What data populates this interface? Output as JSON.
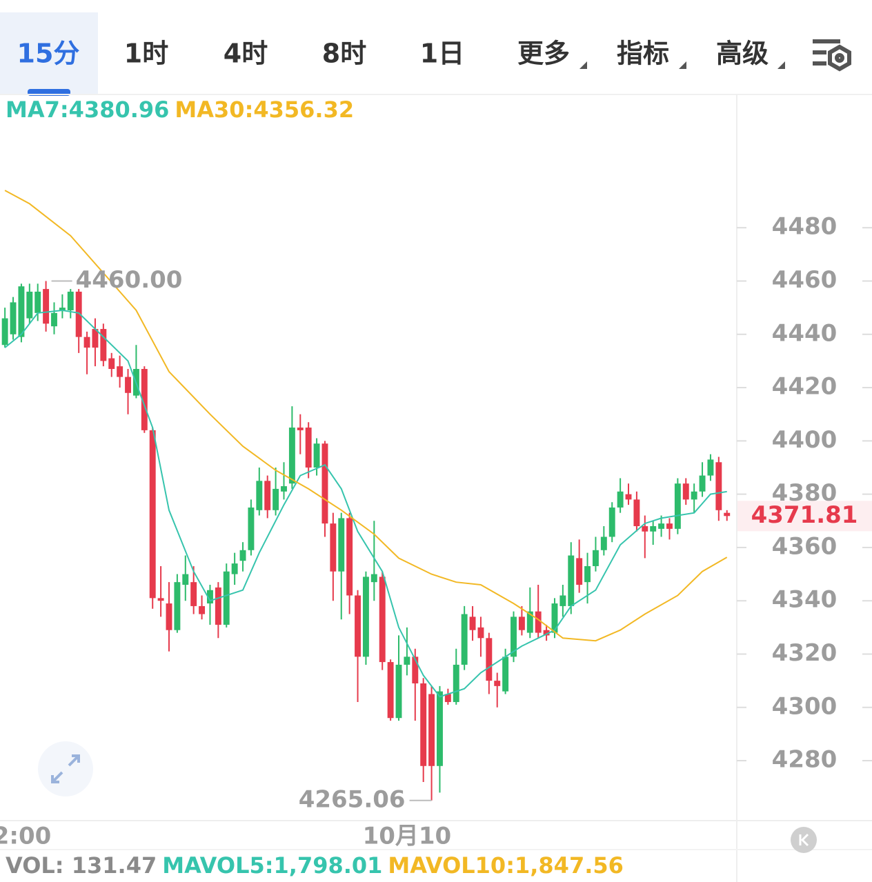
{
  "tabs": [
    "15分",
    "1时",
    "4时",
    "8时",
    "1日",
    "更多",
    "指标",
    "高级"
  ],
  "chart_data": {
    "type": "candlestick",
    "up_color": "#2dbb6b",
    "down_color": "#e63a4c",
    "xlim": [
      -0.6,
      89.2
    ],
    "ylim": [
      4257.5,
      4530
    ],
    "yticks": [
      4280,
      4300,
      4320,
      4340,
      4360,
      4380,
      4400,
      4420,
      4440,
      4460,
      4480
    ],
    "xticks": [
      {
        "value": 2,
        "label": "2:00"
      },
      {
        "value": 49,
        "label": "10月10"
      }
    ],
    "open": [
      4436,
      4440,
      4439,
      4446,
      4448,
      4457,
      4443,
      4449,
      4449,
      4456,
      4439,
      4442,
      4442,
      4431,
      4428,
      4424,
      4417,
      4427,
      4404,
      4341,
      4339,
      4329,
      4346,
      4347,
      4338,
      4339,
      4345,
      4331,
      4350,
      4355,
      4359,
      4374,
      4385,
      4374,
      4381,
      4384,
      4405,
      4405,
      4390,
      4399,
      4369,
      4351,
      4371,
      4342,
      4319,
      4347,
      4349,
      4317,
      4296,
      4316,
      4319,
      4309,
      4305,
      4278,
      4305,
      4302,
      4316,
      4334,
      4330,
      4326,
      4310,
      4306,
      4319,
      4334,
      4328,
      4336,
      4329,
      4328,
      4338,
      4338,
      4356,
      4347,
      4353,
      4359,
      4364,
      4375,
      4380,
      4378,
      4368,
      4366,
      4367,
      4369,
      4367,
      4384,
      4378,
      4381,
      4387,
      4392,
      4373
    ],
    "high": [
      4450,
      4454,
      4459,
      4459,
      4459,
      4460,
      4452,
      4455,
      4457,
      4457,
      4441,
      4446,
      4444,
      4433,
      4432,
      4427,
      4436,
      4428,
      4405,
      4353,
      4347,
      4350,
      4357,
      4353,
      4342,
      4346,
      4347,
      4354,
      4358,
      4362,
      4378,
      4390,
      4387,
      4390,
      4392,
      4413,
      4410,
      4407,
      4401,
      4400,
      4373,
      4373,
      4373,
      4344,
      4351,
      4370,
      4351,
      4318,
      4327,
      4330,
      4322,
      4311,
      4308,
      4308,
      4307,
      4322,
      4338,
      4338,
      4334,
      4328,
      4313,
      4322,
      4336,
      4338,
      4345,
      4346,
      4331,
      4341,
      4346,
      4362,
      4363,
      4358,
      4364,
      4368,
      4377,
      4386,
      4384,
      4381,
      4372,
      4370,
      4372,
      4371,
      4386,
      4386,
      4384,
      4392,
      4395,
      4394,
      4374
    ],
    "low": [
      4435,
      4438,
      4437,
      4444,
      4445,
      4441,
      4440,
      4446,
      4446,
      4433,
      4425,
      4428,
      4428,
      4424,
      4420,
      4410,
      4416,
      4403,
      4337,
      4334,
      4321,
      4328,
      4340,
      4335,
      4333,
      4331,
      4326,
      4330,
      4346,
      4351,
      4357,
      4372,
      4371,
      4372,
      4378,
      4382,
      4395,
      4386,
      4387,
      4364,
      4340,
      4333,
      4335,
      4302,
      4316,
      4340,
      4314,
      4295,
      4295,
      4312,
      4295,
      4272,
      4265.06,
      4268,
      4301,
      4301,
      4314,
      4325,
      4319,
      4305,
      4300,
      4305,
      4317,
      4327,
      4326,
      4326,
      4325,
      4326,
      4334,
      4335,
      4343,
      4339,
      4351,
      4357,
      4362,
      4373,
      4376,
      4366,
      4356,
      4361,
      4364,
      4363,
      4365,
      4376,
      4373,
      4379,
      4385,
      4370,
      4370
    ],
    "close": [
      4446,
      4452,
      4458,
      4456,
      4456,
      4444,
      4448,
      4450,
      4456,
      4439,
      4435,
      4435,
      4430,
      4427,
      4424,
      4418,
      4427,
      4404,
      4341,
      4340,
      4329,
      4347,
      4350,
      4338,
      4335,
      4344,
      4331,
      4351,
      4354,
      4359,
      4375,
      4385,
      4374,
      4382,
      4383,
      4405,
      4404,
      4390,
      4399,
      4369,
      4351,
      4371,
      4342,
      4319,
      4349,
      4350,
      4317,
      4296,
      4316,
      4319,
      4309,
      4278,
      4278,
      4306,
      4302,
      4316,
      4335,
      4329,
      4326,
      4310,
      4308,
      4319,
      4334,
      4329,
      4336,
      4328,
      4327,
      4339,
      4342,
      4357,
      4346,
      4353,
      4359,
      4364,
      4375,
      4381,
      4378,
      4368,
      4366,
      4368,
      4369,
      4367,
      4384,
      4378,
      4381,
      4387,
      4393,
      4374,
      4371.81
    ],
    "series": [
      {
        "name": "MA7",
        "color": "#36c4ad",
        "x": [
          0,
          2,
          4,
          7,
          9,
          12,
          15,
          18,
          20,
          23,
          25,
          29,
          31,
          34,
          36,
          39,
          41,
          43,
          46,
          48,
          51,
          53,
          56,
          58,
          61,
          63,
          67,
          69,
          72,
          75,
          78,
          80,
          84,
          86,
          88
        ],
        "values": [
          4435,
          4440,
          4448,
          4449,
          4448,
          4439,
          4430,
          4405,
          4374,
          4351,
          4340,
          4344,
          4358,
          4376,
          4387,
          4391,
          4382,
          4366,
          4351,
          4330,
          4312,
          4304,
          4307,
          4313,
          4319,
          4323,
          4329,
          4338,
          4344,
          4361,
          4369,
          4371,
          4373,
          4380,
          4380.96
        ]
      },
      {
        "name": "MA30",
        "color": "#f2b824",
        "x": [
          0,
          3,
          8,
          12,
          16,
          20,
          25,
          29,
          33,
          37,
          41,
          45,
          48,
          52,
          55,
          58,
          62,
          65,
          68,
          72,
          75,
          78,
          82,
          85,
          88
        ],
        "values": [
          4494,
          4489,
          4477,
          4463,
          4449,
          4426,
          4410,
          4398,
          4389,
          4382,
          4374,
          4365,
          4356,
          4350,
          4347,
          4346,
          4339,
          4333,
          4326,
          4325,
          4329,
          4335,
          4342,
          4351,
          4356.32
        ]
      }
    ],
    "legend": [
      {
        "label": "MA7:4380.96",
        "color": "#36c4ad"
      },
      {
        "label": "MA30:4356.32",
        "color": "#f2b824"
      }
    ],
    "max_marker": {
      "x": 5,
      "value": 4460,
      "label": "4460.00"
    },
    "min_marker": {
      "x": 52,
      "value": 4265.06,
      "label": "4265.06"
    },
    "last_price": {
      "value": 4371.81,
      "label": "4371.81",
      "color": "#e63a4c"
    },
    "volume_legend": [
      {
        "label": "VOL: 131.47",
        "color": "#8a8a8a"
      },
      {
        "label": "MAVOL5:1,798.01",
        "color": "#36c4ad"
      },
      {
        "label": "MAVOL10:1,847.56",
        "color": "#f2b824"
      }
    ]
  }
}
